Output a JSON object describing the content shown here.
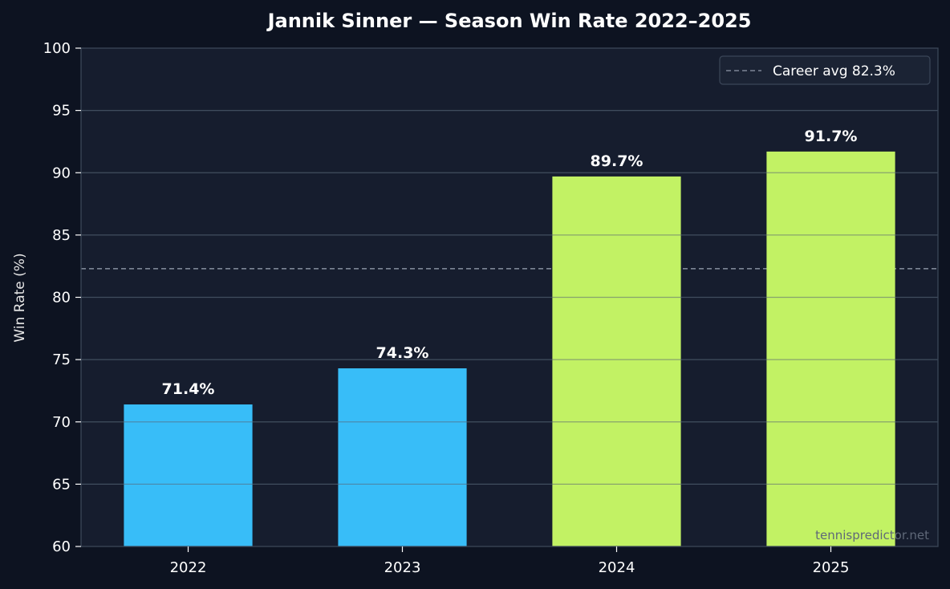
{
  "chart_data": {
    "type": "bar",
    "title": "Jannik Sinner — Season Win Rate 2022–2025",
    "xlabel": "",
    "ylabel": "Win Rate (%)",
    "categories": [
      "2022",
      "2023",
      "2024",
      "2025"
    ],
    "values": [
      71.4,
      74.3,
      89.7,
      91.7
    ],
    "value_labels": [
      "71.4%",
      "74.3%",
      "89.7%",
      "91.7%"
    ],
    "bar_colors": [
      "#38bdf8",
      "#38bdf8",
      "#c2f264",
      "#c2f264"
    ],
    "ylim": [
      60,
      100
    ],
    "yticks": [
      60,
      65,
      70,
      75,
      80,
      85,
      90,
      95,
      100
    ],
    "grid": true,
    "reference_line": {
      "value": 82.3,
      "label": "Career avg 82.3%",
      "style": "dashed",
      "color": "#7c8595"
    },
    "legend": {
      "placement": "top-right",
      "entries": [
        "Career avg 82.3%"
      ]
    },
    "watermark": "tennispredictor.net"
  },
  "colors": {
    "background": "#0d1321",
    "plot_background": "#161d2e",
    "grid": "#233142",
    "spine": "#3b4658"
  }
}
